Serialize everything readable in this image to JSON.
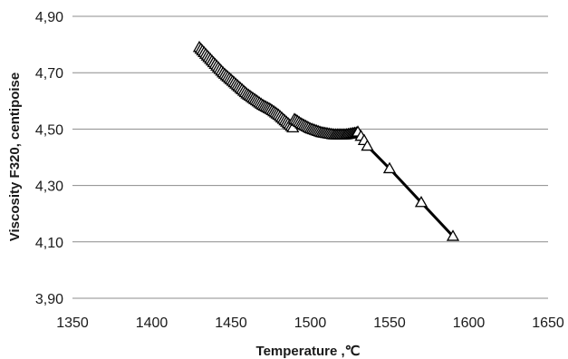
{
  "chart_data": {
    "type": "line",
    "title": "",
    "xlabel": "Temperature ,℃",
    "ylabel": "Viscosity F320, centipoise",
    "xlim": [
      1350,
      1650
    ],
    "ylim": [
      3.9,
      4.9
    ],
    "x_ticks": [
      1350,
      1400,
      1450,
      1500,
      1550,
      1600,
      1650
    ],
    "x_tick_labels": [
      "1350",
      "1400",
      "1450",
      "1500",
      "1550",
      "1600",
      "1650"
    ],
    "y_ticks": [
      3.9,
      4.1,
      4.3,
      4.5,
      4.7,
      4.9
    ],
    "y_tick_labels": [
      "3,90",
      "4,10",
      "4,30",
      "4,50",
      "4,70",
      "4,90"
    ],
    "grid": "horizontal",
    "legend": "none",
    "marker": "triangle",
    "line_color": "#000000",
    "series": [
      {
        "x": [
          1430,
          1431,
          1432,
          1433,
          1434,
          1435,
          1436,
          1437,
          1438,
          1439,
          1440,
          1441,
          1442,
          1443,
          1444,
          1445,
          1446,
          1447,
          1448,
          1449,
          1450,
          1451,
          1452,
          1453,
          1454,
          1455,
          1456,
          1457,
          1458,
          1459,
          1460,
          1461,
          1462,
          1463,
          1464,
          1465,
          1466,
          1467,
          1468,
          1469,
          1470,
          1471,
          1472,
          1473,
          1474,
          1475,
          1476,
          1477,
          1478,
          1479,
          1480,
          1481,
          1482,
          1483,
          1484,
          1485,
          1486,
          1487,
          1488,
          1489,
          1490,
          1491,
          1492,
          1493,
          1494,
          1495,
          1496,
          1497,
          1498,
          1499,
          1500,
          1501,
          1502,
          1503,
          1504,
          1505,
          1506,
          1507,
          1508,
          1509,
          1510,
          1511,
          1512,
          1513,
          1514,
          1515,
          1516,
          1517,
          1518,
          1519,
          1520,
          1521,
          1522,
          1523,
          1524,
          1525,
          1526,
          1527,
          1528,
          1529,
          1530,
          1532,
          1534,
          1536,
          1550,
          1570,
          1590
        ],
        "y": [
          4.79,
          4.784,
          4.778,
          4.772,
          4.766,
          4.76,
          4.754,
          4.748,
          4.742,
          4.736,
          4.73,
          4.724,
          4.718,
          4.712,
          4.706,
          4.7,
          4.695,
          4.69,
          4.685,
          4.68,
          4.675,
          4.67,
          4.665,
          4.66,
          4.655,
          4.65,
          4.645,
          4.64,
          4.635,
          4.63,
          4.625,
          4.621,
          4.617,
          4.613,
          4.609,
          4.605,
          4.601,
          4.597,
          4.593,
          4.589,
          4.585,
          4.582,
          4.579,
          4.576,
          4.573,
          4.57,
          4.566,
          4.562,
          4.558,
          4.554,
          4.55,
          4.545,
          4.54,
          4.535,
          4.53,
          4.525,
          4.52,
          4.515,
          4.51,
          4.505,
          4.535,
          4.532,
          4.528,
          4.524,
          4.52,
          4.517,
          4.514,
          4.511,
          4.508,
          4.505,
          4.502,
          4.5,
          4.498,
          4.496,
          4.494,
          4.492,
          4.49,
          4.488,
          4.487,
          4.486,
          4.485,
          4.484,
          4.483,
          4.482,
          4.481,
          4.48,
          4.48,
          4.48,
          4.48,
          4.48,
          4.48,
          4.48,
          4.48,
          4.481,
          4.482,
          4.483,
          4.484,
          4.485,
          4.486,
          4.487,
          4.49,
          4.475,
          4.46,
          4.44,
          4.36,
          4.24,
          4.12
        ]
      }
    ]
  }
}
